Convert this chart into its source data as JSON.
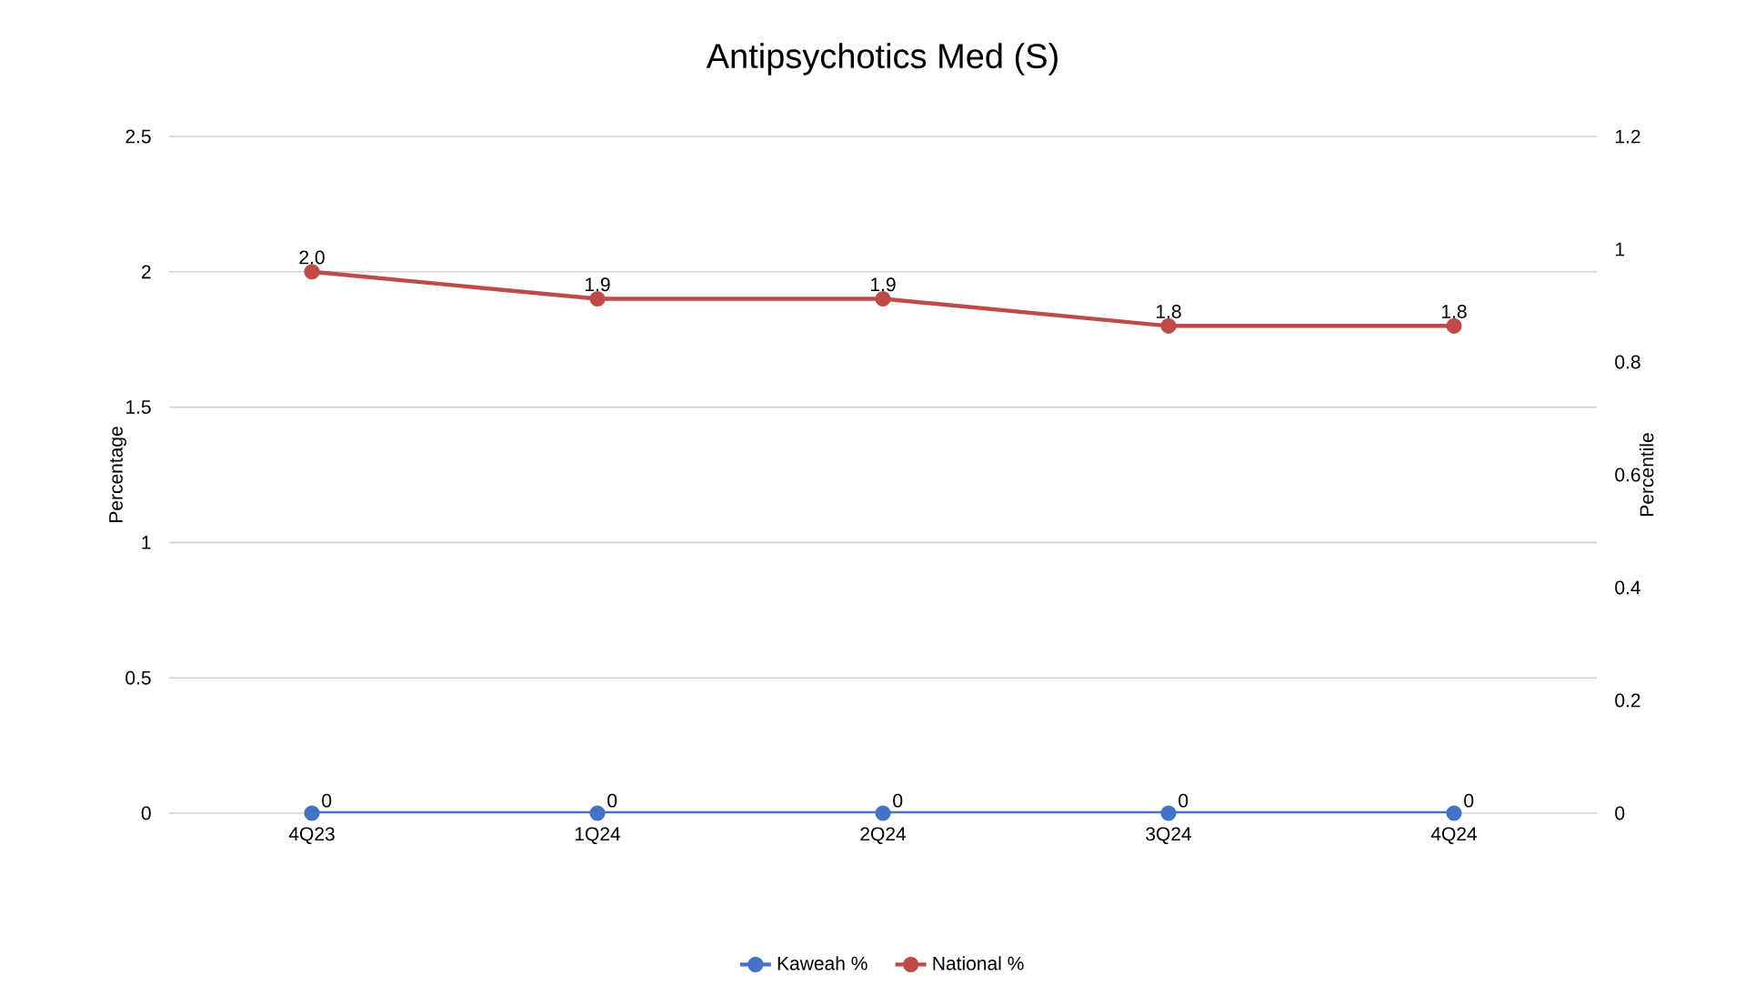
{
  "chart_data": {
    "type": "line",
    "title": "Antipsychotics Med (S)",
    "ylabel": "Percentage",
    "y2label": "Percentile",
    "categories": [
      "4Q23",
      "1Q24",
      "2Q24",
      "3Q24",
      "4Q24"
    ],
    "series": [
      {
        "name": "Kaweah %",
        "color": "#4472c4",
        "values": [
          0,
          0,
          0,
          0,
          0
        ],
        "value_labels": [
          "0",
          "0",
          "0",
          "0",
          "0"
        ]
      },
      {
        "name": "National %",
        "color": "#be4b48",
        "values": [
          2.0,
          1.9,
          1.9,
          1.8,
          1.8
        ],
        "value_labels": [
          "2.0",
          "1.9",
          "1.9",
          "1.8",
          "1.8"
        ]
      }
    ],
    "ylim": [
      0,
      2.5
    ],
    "yticks": [
      0,
      0.5,
      1,
      1.5,
      2,
      2.5
    ],
    "y2lim": [
      0,
      1.2
    ],
    "y2ticks": [
      0,
      0.2,
      0.4,
      0.6,
      0.8,
      1,
      1.2
    ],
    "grid": "y",
    "legend": "bottom",
    "marker": "circle",
    "line_style": "solid"
  }
}
